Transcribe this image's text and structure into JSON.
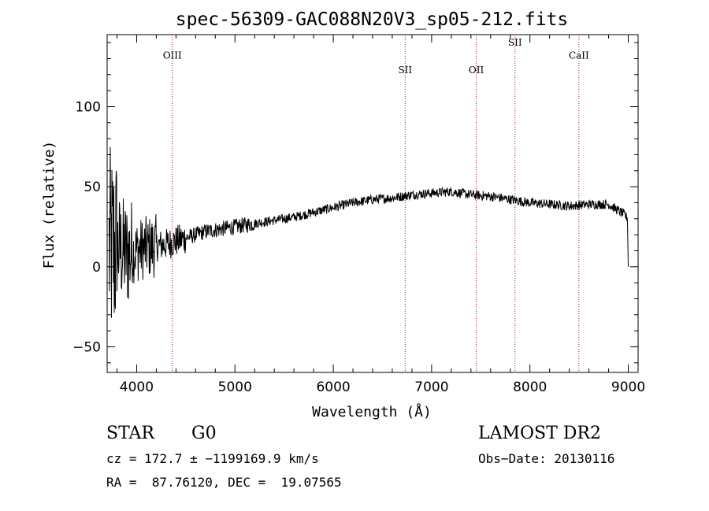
{
  "chart_data": {
    "type": "line",
    "title": "spec-56309-GAC088N20V3_sp05-212.fits",
    "xlabel": "Wavelength (Å)",
    "ylabel": "Flux (relative)",
    "xlim": [
      3700,
      9100
    ],
    "ylim": [
      -66,
      145
    ],
    "x_ticks": [
      4000,
      5000,
      6000,
      7000,
      8000,
      9000
    ],
    "y_ticks": [
      -50,
      0,
      50,
      100
    ],
    "grid": false,
    "line_color": "#000000",
    "marker_color": "#8b1a1a",
    "continuum_points": [
      [
        3720,
        10
      ],
      [
        3800,
        12
      ],
      [
        3900,
        8
      ],
      [
        4000,
        10
      ],
      [
        4100,
        12
      ],
      [
        4200,
        13
      ],
      [
        4300,
        14
      ],
      [
        4400,
        16
      ],
      [
        4500,
        18
      ],
      [
        4600,
        20
      ],
      [
        4700,
        22
      ],
      [
        4800,
        23
      ],
      [
        4900,
        24
      ],
      [
        5000,
        25
      ],
      [
        5200,
        27
      ],
      [
        5400,
        29
      ],
      [
        5600,
        31
      ],
      [
        5800,
        34
      ],
      [
        6000,
        37
      ],
      [
        6200,
        40
      ],
      [
        6400,
        42
      ],
      [
        6600,
        43
      ],
      [
        6800,
        45
      ],
      [
        7000,
        46
      ],
      [
        7200,
        47
      ],
      [
        7400,
        45
      ],
      [
        7600,
        44
      ],
      [
        7800,
        42
      ],
      [
        8000,
        40
      ],
      [
        8200,
        39
      ],
      [
        8400,
        38
      ],
      [
        8600,
        39
      ],
      [
        8800,
        39
      ],
      [
        8950,
        33
      ],
      [
        9000,
        30
      ]
    ],
    "lines": [
      {
        "label": "OIII",
        "x": 4363,
        "label_y": 130
      },
      {
        "label": "SII",
        "x": 6731,
        "label_y": 121
      },
      {
        "label": "OII",
        "x": 7454,
        "label_y": 121
      },
      {
        "label": "SII",
        "x": 7848,
        "label_y": 138
      },
      {
        "label": "CaII",
        "x": 8498,
        "label_y": 130
      }
    ]
  },
  "info": {
    "class_label": "STAR",
    "subclass": "G0",
    "survey": "LAMOST DR2",
    "cz": "cz = 172.7 ± −1199169.9 km/s",
    "obs_date": "Obs−Date: 20130116",
    "radec": "RA =  87.76120, DEC =  19.07565"
  }
}
